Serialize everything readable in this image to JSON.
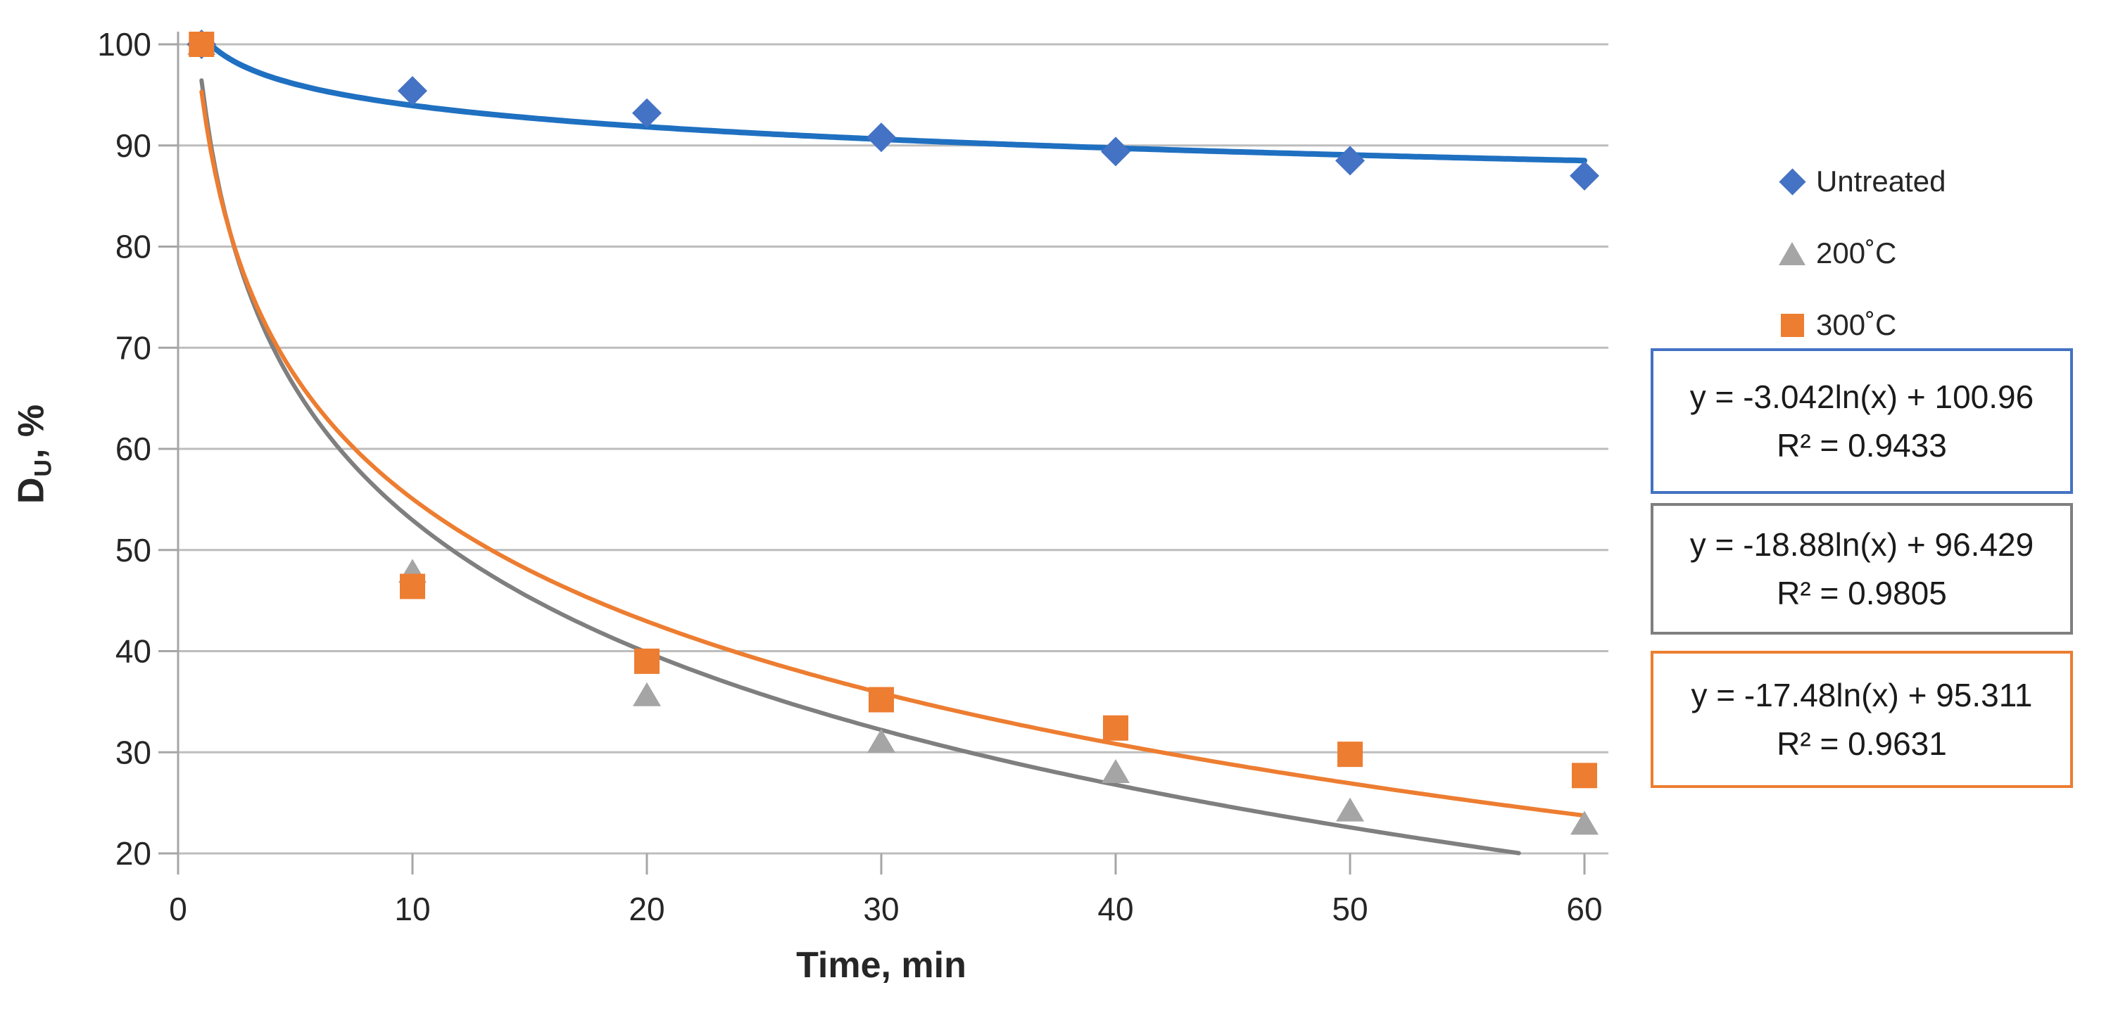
{
  "chart_data": {
    "type": "scatter",
    "title": "",
    "xlabel": "Time, min",
    "ylabel": "D_U, %",
    "ylabel_parts": {
      "main": "D",
      "sub": "U",
      "rest": ", %"
    },
    "xlim": [
      0,
      60
    ],
    "ylim": [
      20,
      100
    ],
    "x_ticks": [
      0,
      10,
      20,
      30,
      40,
      50,
      60
    ],
    "y_ticks": [
      100,
      90,
      80,
      70,
      60,
      50,
      40,
      30,
      20
    ],
    "grid": true,
    "legend_position": "right",
    "colors": {
      "gridline": "#BDBDBD",
      "axis": "#A6A6A6",
      "tick_text": "#262626"
    },
    "series": [
      {
        "name": "Untreated",
        "marker": "diamond",
        "color": "#4472C4",
        "line_color": "#1F70C1",
        "points": [
          [
            1,
            100
          ],
          [
            10,
            95.4
          ],
          [
            20,
            93.2
          ],
          [
            30,
            90.8
          ],
          [
            40,
            89.4
          ],
          [
            50,
            88.5
          ],
          [
            60,
            87.0
          ]
        ],
        "trendline": {
          "type": "logarithmic",
          "a": -3.042,
          "b": 100.96,
          "r2": 0.9433,
          "equation_label": "y = -3.042ln(x) + 100.96",
          "r2_label": "R² = 0.9433"
        }
      },
      {
        "name": "200˚C",
        "marker": "triangle",
        "color": "#A5A5A5",
        "line_color": "#7F7F7F",
        "points": [
          [
            1,
            100
          ],
          [
            10,
            47.8
          ],
          [
            20,
            35.6
          ],
          [
            30,
            31.0
          ],
          [
            40,
            28.0
          ],
          [
            50,
            24.2
          ],
          [
            60,
            22.9
          ]
        ],
        "trendline": {
          "type": "logarithmic",
          "a": -18.88,
          "b": 96.429,
          "r2": 0.9805,
          "equation_label": "y = -18.88ln(x) + 96.429",
          "r2_label": "R² = 0.9805"
        }
      },
      {
        "name": "300˚C",
        "marker": "square",
        "color": "#ED7D31",
        "line_color": "#ED7D31",
        "points": [
          [
            1,
            100
          ],
          [
            10,
            46.4
          ],
          [
            20,
            39.0
          ],
          [
            30,
            35.2
          ],
          [
            40,
            32.4
          ],
          [
            50,
            29.8
          ],
          [
            60,
            27.7
          ]
        ],
        "trendline": {
          "type": "logarithmic",
          "a": -17.48,
          "b": 95.311,
          "r2": 0.9631,
          "equation_label": "y = -17.48ln(x) + 95.311",
          "r2_label": "R² = 0.9631"
        }
      }
    ]
  }
}
